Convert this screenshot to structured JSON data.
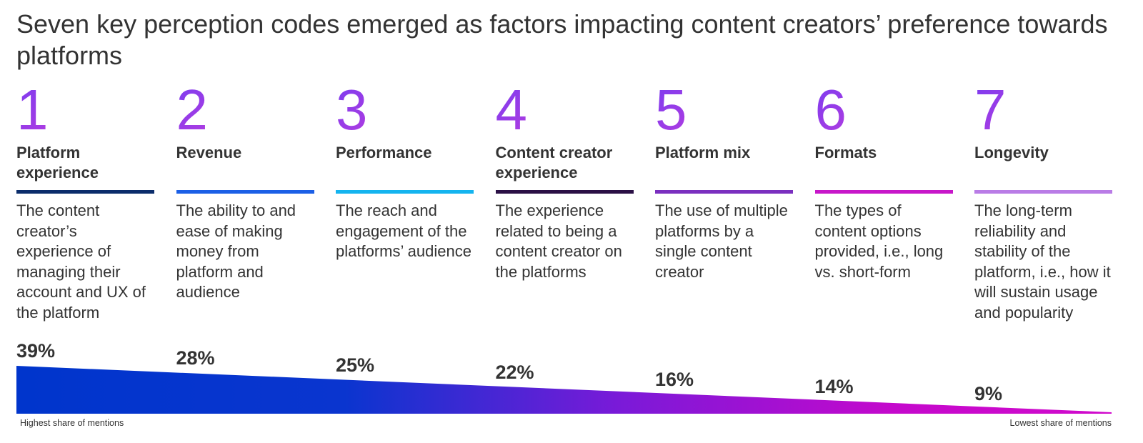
{
  "header": {
    "title": "Seven key perception codes emerged as factors impacting content creators’ preference towards platforms"
  },
  "codes": [
    {
      "number": "1",
      "title": "Platform experience",
      "description": "The content creator’s experience of managing their account and UX of the platform",
      "share": "39%",
      "color": "#0b2d6b"
    },
    {
      "number": "2",
      "title": "Revenue",
      "description": "The ability to and ease of making money from platform and audience",
      "share": "28%",
      "color": "#1b5fe6"
    },
    {
      "number": "3",
      "title": "Performance",
      "description": "The reach and engagement of the platforms’ audience",
      "share": "25%",
      "color": "#14b4ef"
    },
    {
      "number": "4",
      "title": "Content creator experience",
      "description": "The experience related to being a content creator on the platforms",
      "share": "22%",
      "color": "#2b1045"
    },
    {
      "number": "5",
      "title": "Platform mix",
      "description": "The use of multiple platforms by a single content creator",
      "share": "16%",
      "color": "#7a2fbf"
    },
    {
      "number": "6",
      "title": "Formats",
      "description": "The types of content options provided, i.e., long vs. short-form",
      "share": "14%",
      "color": "#c717c9"
    },
    {
      "number": "7",
      "title": "Longevity",
      "description": "The long-term reliability and stability of the platform, i.e., how it will sustain usage and popularity",
      "share": "9%",
      "color": "#b97ce6"
    }
  ],
  "footer": {
    "left": "Highest share of mentions",
    "right": "Lowest share of mentions"
  }
}
